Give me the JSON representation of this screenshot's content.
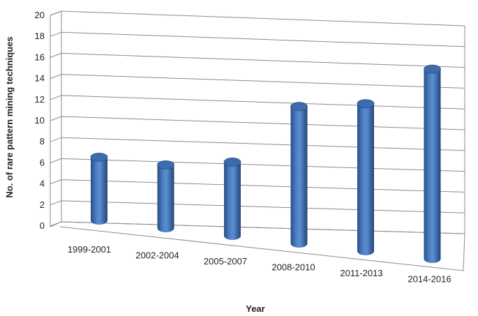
{
  "chart_data": {
    "type": "bar",
    "style": "3d-cylinder",
    "categories": [
      "1999-2001",
      "2002-2004",
      "2005-2007",
      "2008-2010",
      "2011-2013",
      "2014-2016"
    ],
    "series": [
      {
        "values": [
          6,
          6,
          7,
          13,
          14,
          18
        ]
      }
    ],
    "xlabel": "Year",
    "ylabel": "No. of rare pattern mining techniques",
    "ylim": [
      0,
      20
    ],
    "yticks": [
      "0",
      "2",
      "4",
      "6",
      "8",
      "10",
      "12",
      "14",
      "16",
      "18",
      "20"
    ],
    "grid": true,
    "legend": "none",
    "bar_color": "#3f6fb4"
  }
}
